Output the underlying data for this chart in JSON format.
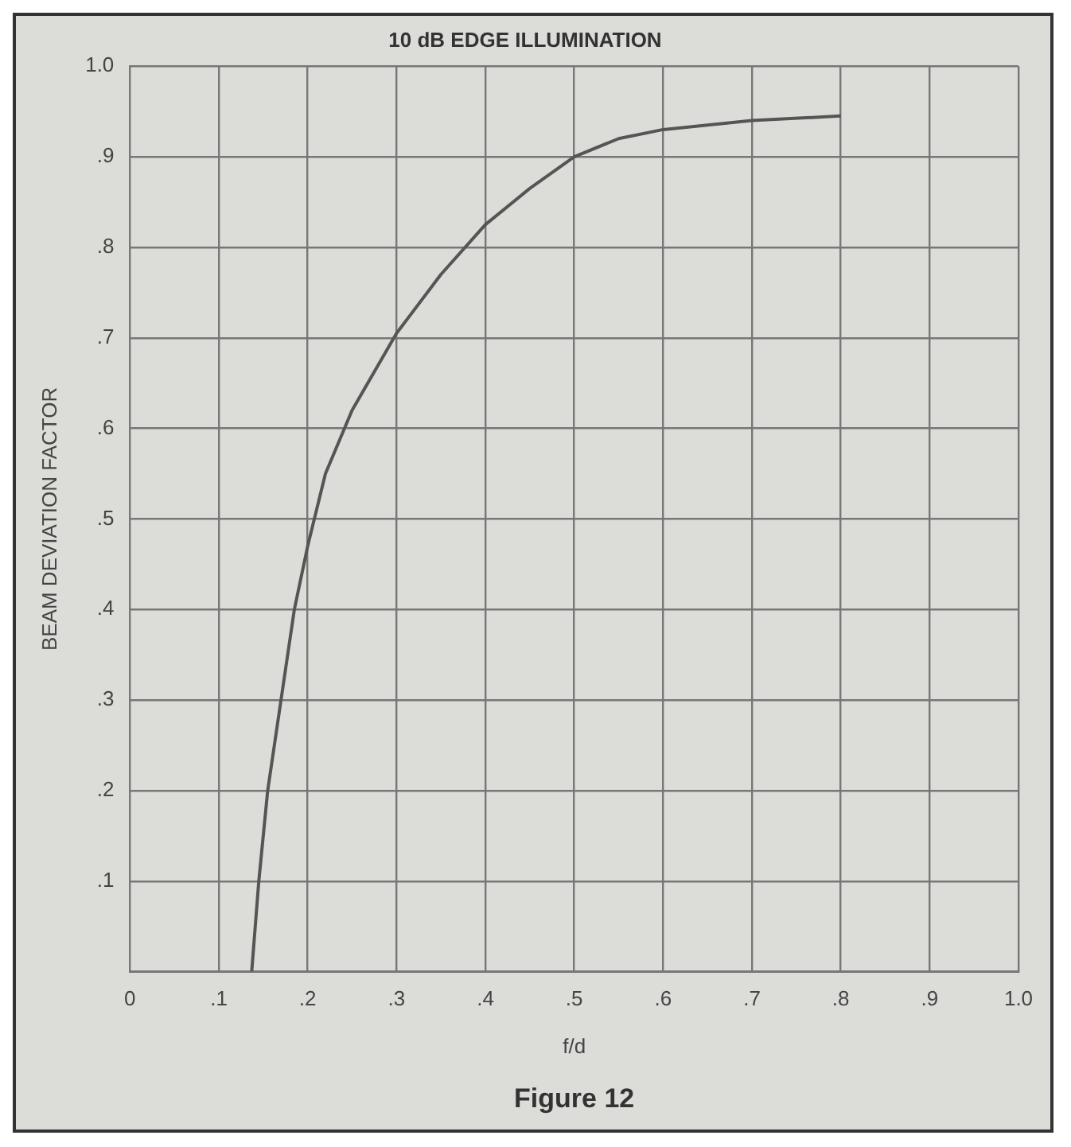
{
  "chart_data": {
    "type": "line",
    "title": "10 dB EDGE ILLUMINATION",
    "xlabel": "f/d",
    "ylabel": "BEAM DEVIATION FACTOR",
    "annotations": [
      "Figure 12"
    ],
    "x": [
      0.137,
      0.145,
      0.155,
      0.17,
      0.185,
      0.2,
      0.22,
      0.25,
      0.3,
      0.35,
      0.4,
      0.45,
      0.5,
      0.55,
      0.6,
      0.7,
      0.8
    ],
    "series": [
      {
        "color": "#555555",
        "values": [
          0,
          0.1,
          0.2,
          0.3,
          0.4,
          0.47,
          0.55,
          0.62,
          0.705,
          0.77,
          0.825,
          0.865,
          0.9,
          0.92,
          0.93,
          0.94,
          0.945
        ]
      }
    ],
    "xlim": [
      0,
      1
    ],
    "ylim": [
      0,
      1
    ],
    "xticks": [
      0,
      {
        "value": 0.1,
        "label": ".1"
      },
      {
        "value": 0.2,
        "label": ".2"
      },
      {
        "value": 0.3,
        "label": ".3"
      },
      {
        "value": 0.4,
        "label": ".4"
      },
      {
        "value": 0.5,
        "label": ".5"
      },
      {
        "value": 0.6,
        "label": ".6"
      },
      {
        "value": 0.7,
        "label": ".7"
      },
      {
        "value": 0.8,
        "label": ".8"
      },
      {
        "value": 0.9,
        "label": ".9"
      },
      {
        "value": 1,
        "label": "1.0"
      }
    ],
    "yticks": [
      {
        "value": 0,
        "label": null
      },
      {
        "value": 0.1,
        "label": ".1"
      },
      {
        "value": 0.2,
        "label": ".2"
      },
      {
        "value": 0.3,
        "label": ".3"
      },
      {
        "value": 0.4,
        "label": ".4"
      },
      {
        "value": 0.5,
        "label": ".5"
      },
      {
        "value": 0.6,
        "label": ".6"
      },
      {
        "value": 0.7,
        "label": ".7"
      },
      {
        "value": 0.8,
        "label": ".8"
      },
      {
        "value": 0.9,
        "label": ".9"
      },
      {
        "value": 1,
        "label": "1.0"
      }
    ],
    "grid": true,
    "marker": "none",
    "line_style": "solid",
    "legend": false
  }
}
